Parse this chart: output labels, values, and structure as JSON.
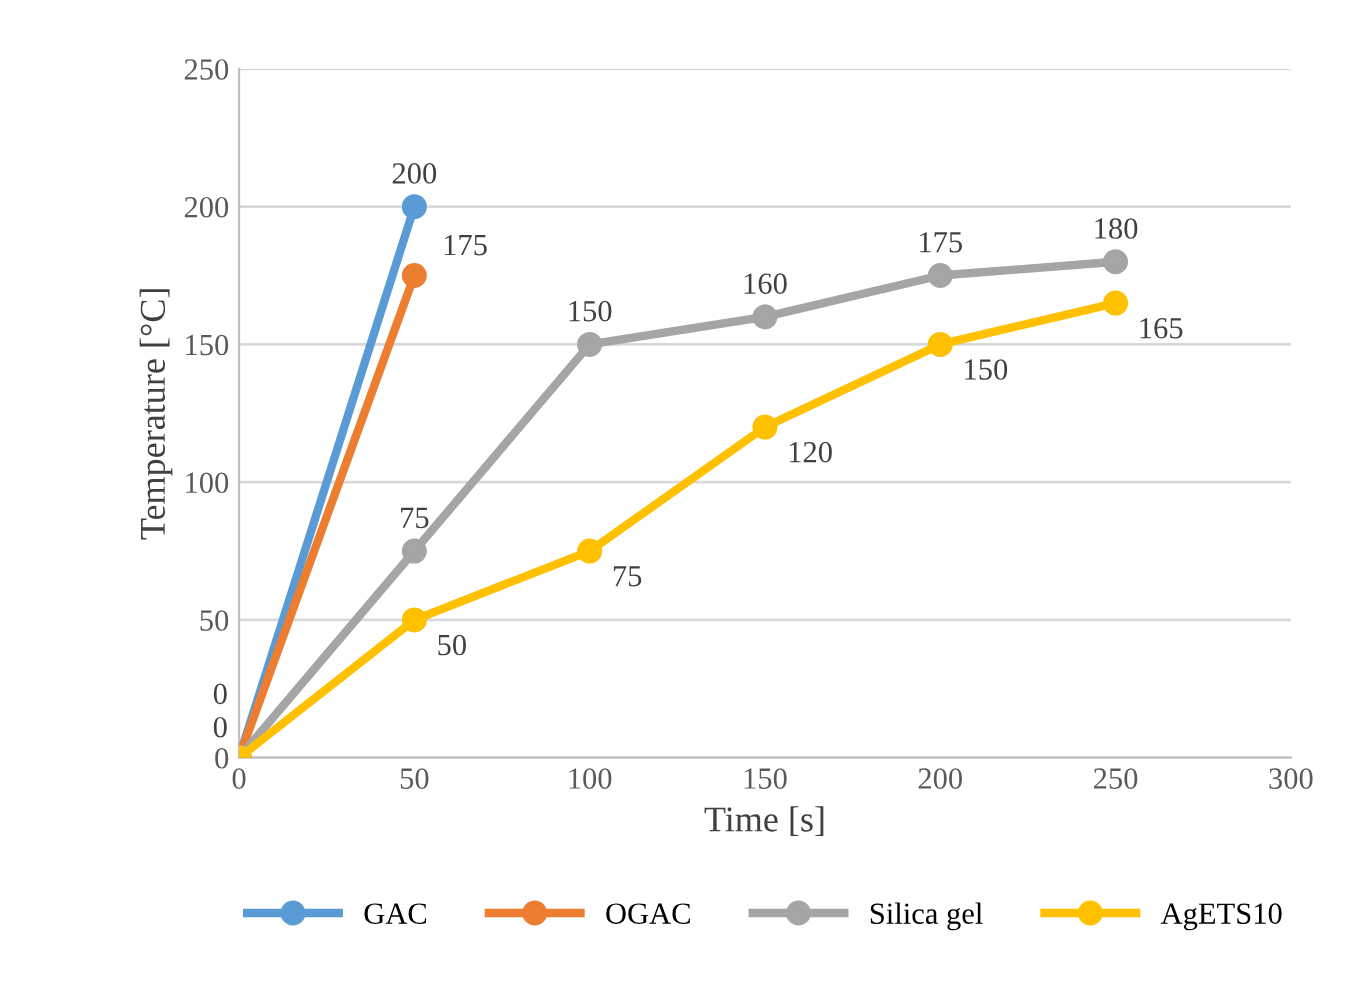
{
  "chart_data": {
    "type": "line",
    "xlabel": "Time [s]",
    "ylabel": "Temperature [°C]",
    "xlim": [
      0,
      300
    ],
    "xticks": [
      0,
      50,
      100,
      150,
      200,
      250,
      300
    ],
    "ylim": [
      0,
      250
    ],
    "yticks": [
      0,
      50,
      100,
      150,
      200,
      250
    ],
    "grid": "y",
    "legend": "bottom",
    "marker": "circle",
    "line_style": "solid",
    "series": [
      {
        "name": "GAC",
        "color": "#5b9bd5",
        "x": [
          0,
          50
        ],
        "values": [
          0,
          200
        ],
        "value_labels": [
          "0",
          "200"
        ]
      },
      {
        "name": "OGAC",
        "color": "#ed7d31",
        "x": [
          0,
          50
        ],
        "values": [
          0,
          175
        ],
        "value_labels": [
          "0",
          "175"
        ]
      },
      {
        "name": "Silica gel",
        "color": "#a5a5a5",
        "x": [
          0,
          50,
          100,
          150,
          200,
          250
        ],
        "values": [
          0,
          75,
          150,
          160,
          175,
          180
        ],
        "value_labels": [
          null,
          "75",
          "150",
          "160",
          "175",
          "180"
        ]
      },
      {
        "name": "AgETS10",
        "color": "#ffc000",
        "x": [
          0,
          50,
          100,
          150,
          200,
          250
        ],
        "values": [
          0,
          50,
          75,
          120,
          150,
          165
        ],
        "value_labels": [
          null,
          "50",
          "75",
          "120",
          "150",
          "165"
        ]
      }
    ]
  }
}
